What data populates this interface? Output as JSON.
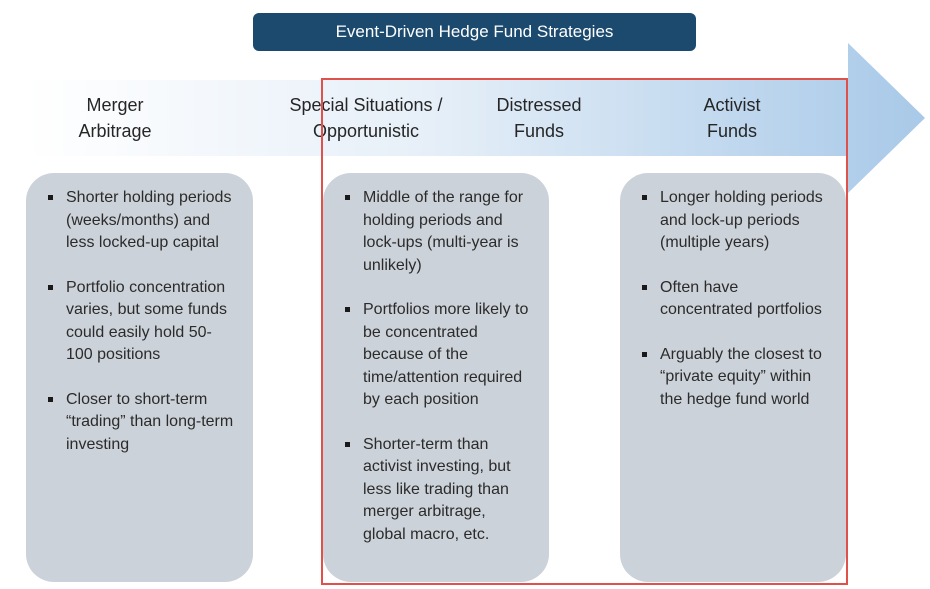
{
  "title": "Event-Driven Hedge Fund Strategies",
  "colors": {
    "title_bg": "#1b4a6e",
    "card_bg": "#ccd2d9",
    "highlight_border": "#e1514b",
    "arrow_end": "#a8c9e8"
  },
  "stages": [
    {
      "line1": "Merger",
      "line2": "Arbitrage"
    },
    {
      "line1": "Special Situations /",
      "line2": "Opportunistic"
    },
    {
      "line1": "Distressed",
      "line2": "Funds"
    },
    {
      "line1": "Activist",
      "line2": "Funds"
    }
  ],
  "cards": [
    {
      "bullets": [
        "Shorter holding periods (weeks/months) and less locked-up capital",
        "Portfolio concentration varies, but some funds could easily hold 50-100 positions",
        "Closer to short-term “trading” than long-term investing"
      ]
    },
    {
      "bullets": [
        "Middle of the range for holding periods and lock-ups (multi-year is unlikely)",
        "Portfolios more likely to be concentrated because of the time/attention required by each position",
        "Shorter-term than activist investing, but less like trading than merger arbitrage, global macro, etc."
      ]
    },
    {
      "bullets": [
        "Longer holding periods and lock-up periods (multiple years)",
        "Often have concentrated portfolios",
        "Arguably the closest to “private equity” within the hedge fund world"
      ]
    }
  ]
}
